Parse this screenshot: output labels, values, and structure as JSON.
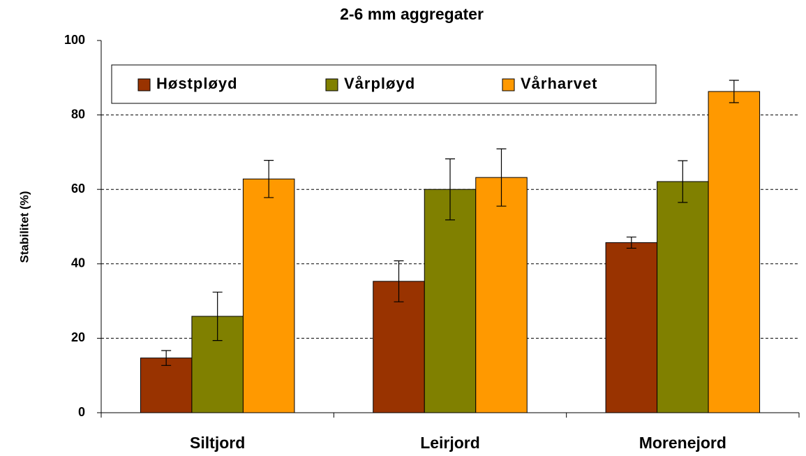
{
  "chart_data": {
    "type": "bar",
    "title": "2-6 mm aggregater",
    "y_label": "Stabilitet (%)",
    "categories": [
      "Siltjord",
      "Leirjord",
      "Morenejord"
    ],
    "series": [
      {
        "name": "Høstpløyd",
        "color": "#993300",
        "values": [
          14.7,
          35.3,
          45.7
        ],
        "errors": [
          2,
          5.5,
          1.5
        ]
      },
      {
        "name": "Vårpløyd",
        "color": "#808000",
        "values": [
          25.9,
          60,
          62.1
        ],
        "errors": [
          6.5,
          8.2,
          5.6
        ]
      },
      {
        "name": "Vårharvet",
        "color": "#ff9900",
        "values": [
          62.8,
          63.2,
          86.3
        ],
        "errors": [
          5,
          7.7,
          3
        ]
      }
    ],
    "ylim": [
      0,
      100
    ],
    "yticks": [
      0,
      20,
      40,
      60,
      80,
      100
    ],
    "grid": true,
    "legend": "top"
  }
}
